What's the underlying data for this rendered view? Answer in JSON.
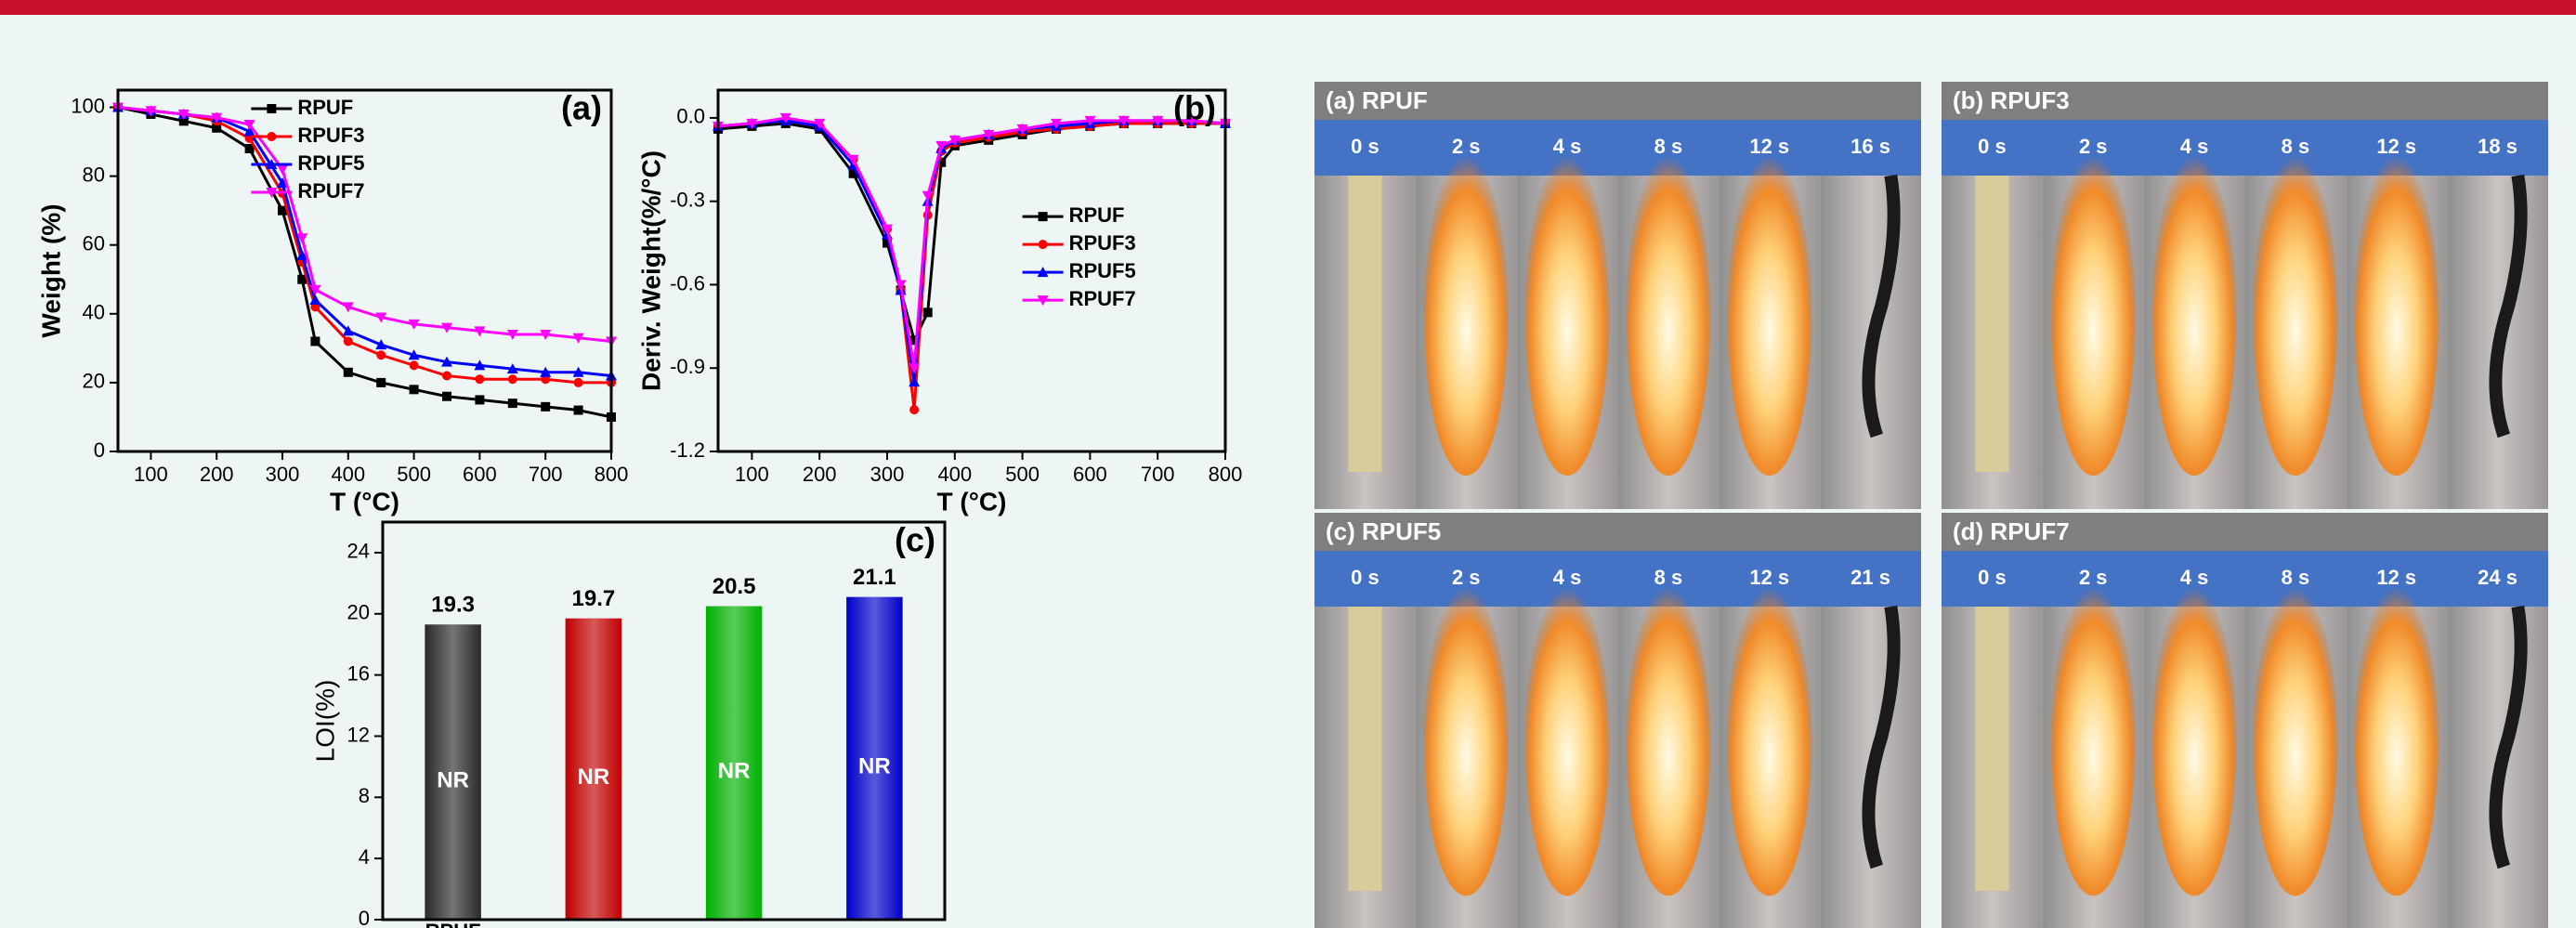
{
  "chart_data": [
    {
      "type": "line",
      "panel_label": "(a)",
      "x_label": "T (°C)",
      "y_label": "Weight (%)",
      "legend": "upper center",
      "x": [
        50,
        100,
        150,
        200,
        250,
        300,
        330,
        350,
        400,
        450,
        500,
        550,
        600,
        650,
        700,
        750,
        800
      ],
      "xlim": [
        50,
        800
      ],
      "xticks": [
        100,
        200,
        300,
        400,
        500,
        600,
        700,
        800
      ],
      "ylim": [
        0,
        105
      ],
      "yticks": [
        0,
        20,
        40,
        60,
        80,
        100
      ],
      "series": [
        {
          "name": "RPUF",
          "color": "#000000",
          "marker": "square",
          "values": [
            100,
            98,
            96,
            94,
            88,
            70,
            50,
            32,
            23,
            20,
            18,
            16,
            15,
            14,
            13,
            12,
            10
          ]
        },
        {
          "name": "RPUF3",
          "color": "#ff0000",
          "marker": "circle",
          "values": [
            100,
            99,
            98,
            96,
            91,
            75,
            55,
            42,
            32,
            28,
            25,
            22,
            21,
            21,
            21,
            20,
            20
          ]
        },
        {
          "name": "RPUF5",
          "color": "#0000ff",
          "marker": "triangle",
          "values": [
            100,
            99,
            98,
            97,
            93,
            78,
            57,
            44,
            35,
            31,
            28,
            26,
            25,
            24,
            23,
            23,
            22
          ]
        },
        {
          "name": "RPUF7",
          "color": "#ff00ff",
          "marker": "triangle-down",
          "values": [
            100,
            99,
            98,
            97,
            95,
            82,
            62,
            47,
            42,
            39,
            37,
            36,
            35,
            34,
            34,
            33,
            32
          ]
        }
      ]
    },
    {
      "type": "line",
      "panel_label": "(b)",
      "x_label": "T (°C)",
      "y_label": "Deriv. Weight(%/°C)",
      "legend": "center right",
      "x": [
        50,
        100,
        150,
        200,
        250,
        300,
        320,
        340,
        360,
        380,
        400,
        450,
        500,
        550,
        600,
        650,
        700,
        750,
        800
      ],
      "xlim": [
        50,
        800
      ],
      "xticks": [
        100,
        200,
        300,
        400,
        500,
        600,
        700,
        800
      ],
      "ylim": [
        -1.2,
        0.1
      ],
      "yticks": [
        {
          "value": 0,
          "label": "0.0"
        },
        -0.3,
        -0.6,
        -0.9,
        -1.2
      ],
      "series": [
        {
          "name": "RPUF",
          "color": "#000000",
          "marker": "square",
          "values": [
            -0.04,
            -0.03,
            -0.02,
            -0.04,
            -0.2,
            -0.45,
            -0.62,
            -0.8,
            -0.7,
            -0.16,
            -0.1,
            -0.08,
            -0.06,
            -0.04,
            -0.03,
            -0.02,
            -0.02,
            -0.02,
            -0.02
          ]
        },
        {
          "name": "RPUF3",
          "color": "#ff0000",
          "marker": "circle",
          "values": [
            -0.03,
            -0.02,
            -0.01,
            -0.03,
            -0.15,
            -0.4,
            -0.62,
            -1.05,
            -0.35,
            -0.12,
            -0.09,
            -0.07,
            -0.05,
            -0.04,
            -0.03,
            -0.02,
            -0.02,
            -0.02,
            -0.02
          ]
        },
        {
          "name": "RPUF5",
          "color": "#0000ff",
          "marker": "triangle",
          "values": [
            -0.03,
            -0.02,
            -0.01,
            -0.03,
            -0.17,
            -0.42,
            -0.62,
            -0.95,
            -0.3,
            -0.11,
            -0.08,
            -0.06,
            -0.04,
            -0.03,
            -0.02,
            -0.01,
            -0.01,
            -0.01,
            -0.02
          ]
        },
        {
          "name": "RPUF7",
          "color": "#ff00ff",
          "marker": "triangle-down",
          "values": [
            -0.03,
            -0.02,
            0.0,
            -0.02,
            -0.15,
            -0.4,
            -0.6,
            -0.9,
            -0.28,
            -0.1,
            -0.08,
            -0.06,
            -0.04,
            -0.02,
            -0.01,
            -0.01,
            -0.01,
            -0.01,
            -0.02
          ]
        }
      ]
    },
    {
      "type": "bar",
      "panel_label": "(c)",
      "y_label": "LOI(%)",
      "categories": [
        "RPUF",
        null,
        null,
        null
      ],
      "values": [
        19.3,
        19.7,
        20.5,
        21.1
      ],
      "colors": [
        "#2a2a2a",
        "#c00000",
        "#00b000",
        "#0000c8"
      ],
      "bar_labels": [
        "NR",
        "NR",
        "NR",
        "NR"
      ],
      "ylim": [
        0,
        26
      ],
      "yticks": [
        0,
        4,
        8,
        12,
        16,
        20,
        24
      ]
    }
  ],
  "photo_panels": [
    {
      "title": "(a) RPUF",
      "times": [
        "0 s",
        "2 s",
        "4 s",
        "8 s",
        "12 s",
        "16 s"
      ]
    },
    {
      "title": "(b) RPUF3",
      "times": [
        "0 s",
        "2 s",
        "4 s",
        "8 s",
        "12 s",
        "18 s"
      ]
    },
    {
      "title": "(c) RPUF5",
      "times": [
        "0 s",
        "2 s",
        "4 s",
        "8 s",
        "12 s",
        "21 s"
      ]
    },
    {
      "title": "(d) RPUF7",
      "times": [
        "0 s",
        "2 s",
        "4 s",
        "8 s",
        "12 s",
        "24 s"
      ]
    }
  ]
}
